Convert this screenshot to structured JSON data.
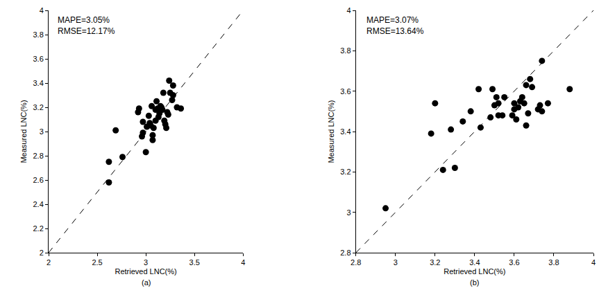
{
  "chart_data": [
    {
      "type": "scatter",
      "caption": "(a)",
      "xlabel": "Retrieved LNC(%)",
      "ylabel": "Measured LNC(%)",
      "annotations": [
        "MAPE=3.05%",
        "RMSE=12.17%"
      ],
      "grid": false,
      "xlim": [
        2,
        4
      ],
      "ylim": [
        2,
        4
      ],
      "xticks": [
        2,
        2.5,
        3,
        3.5,
        4
      ],
      "yticks": [
        2,
        2.2,
        2.4,
        2.6,
        2.8,
        3,
        3.2,
        3.4,
        3.6,
        3.8,
        4
      ],
      "series": [
        {
          "type": "scatter",
          "marker": "circle",
          "color": "#000000",
          "x": [
            2.62,
            2.62,
            2.69,
            2.76,
            2.92,
            2.93,
            2.96,
            2.97,
            2.97,
            3.0,
            3.01,
            3.03,
            3.04,
            3.05,
            3.06,
            3.07,
            3.07,
            3.08,
            3.1,
            3.11,
            3.12,
            3.13,
            3.14,
            3.15,
            3.16,
            3.17,
            3.18,
            3.19,
            3.2,
            3.21,
            3.22,
            3.23,
            3.24,
            3.25,
            3.27,
            3.28,
            3.28,
            3.32,
            3.36,
            3.1
          ],
          "values": [
            2.75,
            2.58,
            3.01,
            2.79,
            3.16,
            3.19,
            2.96,
            2.99,
            3.08,
            2.83,
            3.04,
            3.13,
            3.07,
            3.05,
            3.21,
            2.97,
            2.93,
            3.03,
            3.09,
            3.25,
            3.19,
            3.12,
            3.15,
            3.21,
            3.2,
            3.18,
            3.32,
            3.09,
            3.06,
            3.03,
            3.16,
            3.14,
            3.42,
            3.32,
            3.26,
            3.3,
            3.38,
            3.2,
            3.19,
            3.18
          ]
        },
        {
          "type": "line",
          "line_style": "dashed",
          "color": "#000000",
          "x": [
            2,
            4
          ],
          "values": [
            2,
            4
          ]
        }
      ]
    },
    {
      "type": "scatter",
      "caption": "(b)",
      "xlabel": "Retrieved LNC(%)",
      "ylabel": "Measured LNC(%)",
      "annotations": [
        "MAPE=3.07%",
        "RMSE=13.64%"
      ],
      "grid": false,
      "xlim": [
        2.8,
        4
      ],
      "ylim": [
        2.8,
        4
      ],
      "xticks": [
        2.8,
        3,
        3.2,
        3.4,
        3.6,
        3.8,
        4
      ],
      "yticks": [
        2.8,
        3,
        3.2,
        3.4,
        3.6,
        3.8,
        4
      ],
      "series": [
        {
          "type": "scatter",
          "marker": "circle",
          "color": "#000000",
          "x": [
            2.95,
            3.18,
            3.2,
            3.24,
            3.28,
            3.3,
            3.34,
            3.38,
            3.42,
            3.43,
            3.48,
            3.49,
            3.5,
            3.51,
            3.52,
            3.52,
            3.54,
            3.55,
            3.59,
            3.6,
            3.6,
            3.61,
            3.62,
            3.63,
            3.64,
            3.65,
            3.66,
            3.66,
            3.67,
            3.68,
            3.69,
            3.72,
            3.73,
            3.74,
            3.74,
            3.77,
            3.88
          ],
          "values": [
            3.02,
            3.39,
            3.54,
            3.21,
            3.41,
            3.22,
            3.45,
            3.5,
            3.61,
            3.42,
            3.47,
            3.61,
            3.53,
            3.57,
            3.48,
            3.54,
            3.48,
            3.57,
            3.48,
            3.54,
            3.51,
            3.46,
            3.52,
            3.55,
            3.57,
            3.54,
            3.63,
            3.43,
            3.49,
            3.66,
            3.62,
            3.51,
            3.53,
            3.5,
            3.75,
            3.54,
            3.61
          ]
        },
        {
          "type": "line",
          "line_style": "dashed",
          "color": "#000000",
          "x": [
            2.8,
            4
          ],
          "values": [
            2.8,
            4
          ]
        }
      ]
    }
  ]
}
